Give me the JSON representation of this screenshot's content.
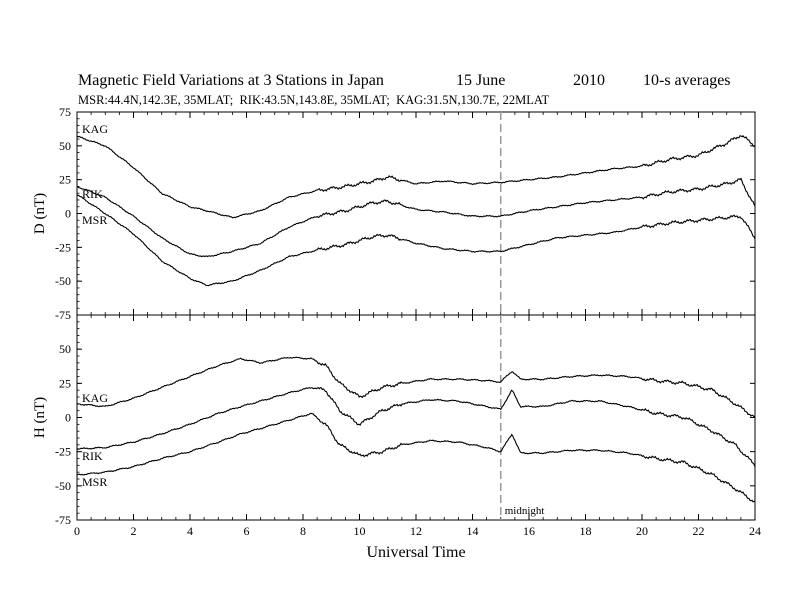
{
  "header": {
    "title": "Magnetic Field Variations at 3 Stations in Japan",
    "date": "15 June",
    "year": "2010",
    "averaging": "10-s averages",
    "stations": "MSR:44.4N,142.3E, 35MLAT;  RIK:43.5N,143.8E, 35MLAT;  KAG:31.5N,130.7E, 22MLAT"
  },
  "chart_data": [
    {
      "type": "line",
      "panel": "top",
      "ylabel": "D (nT)",
      "ylim": [
        -75,
        75
      ],
      "yticks": [
        75,
        50,
        25,
        0,
        -25,
        -50,
        -75
      ],
      "xlim": [
        0,
        24
      ],
      "xticks": [
        0,
        2,
        4,
        6,
        8,
        10,
        12,
        14,
        16,
        18,
        20,
        22,
        24
      ],
      "series": [
        {
          "name": "KAG",
          "x": [
            0,
            1,
            2,
            3,
            4,
            4.6,
            5.5,
            6.5,
            7.5,
            8.5,
            9.5,
            10.5,
            11,
            12,
            13,
            14,
            15,
            16,
            17,
            18,
            19,
            20,
            21,
            22,
            23,
            23.5,
            24
          ],
          "values": [
            57,
            50,
            34,
            15,
            5,
            2,
            -3,
            2,
            12,
            17,
            20,
            24,
            27,
            22,
            24,
            22,
            23,
            25,
            27,
            30,
            33,
            35,
            40,
            43,
            52,
            58,
            50
          ]
        },
        {
          "name": "RIK",
          "x": [
            0,
            1,
            2,
            3,
            4,
            4.6,
            5.5,
            6.5,
            7.5,
            8.5,
            9.5,
            10.5,
            11,
            12,
            13,
            14,
            15,
            16,
            17,
            18,
            19,
            20,
            21,
            22,
            23,
            23.5,
            24
          ],
          "values": [
            20,
            12,
            -2,
            -18,
            -30,
            -32,
            -28,
            -22,
            -10,
            -2,
            2,
            8,
            9,
            3,
            1,
            -2,
            -2,
            2,
            5,
            8,
            10,
            12,
            16,
            18,
            22,
            25,
            5
          ]
        },
        {
          "name": "MSR",
          "x": [
            0,
            1,
            2,
            3,
            4,
            4.6,
            5.5,
            6.5,
            7.5,
            8.5,
            9.5,
            10.5,
            11,
            12,
            13,
            14,
            15,
            16,
            17,
            18,
            19,
            20,
            21,
            22,
            23,
            23.5,
            24
          ],
          "values": [
            14,
            0,
            -15,
            -35,
            -48,
            -53,
            -50,
            -42,
            -32,
            -27,
            -23,
            -17,
            -16,
            -22,
            -26,
            -28,
            -28,
            -23,
            -18,
            -16,
            -14,
            -10,
            -7,
            -5,
            -3,
            -2,
            -18
          ]
        }
      ],
      "annotations": [
        {
          "text": "KAG"
        },
        {
          "text": "RIK"
        },
        {
          "text": "MSR"
        }
      ]
    },
    {
      "type": "line",
      "panel": "bottom",
      "ylabel": "H (nT)",
      "xlabel": "Universal Time",
      "ylim": [
        -75,
        75
      ],
      "yticks": [
        50,
        25,
        0,
        -25,
        -50,
        -75
      ],
      "xlim": [
        0,
        24
      ],
      "xticks": [
        0,
        2,
        4,
        6,
        8,
        10,
        12,
        14,
        16,
        18,
        20,
        22,
        24
      ],
      "series": [
        {
          "name": "KAG",
          "x": [
            0,
            1,
            2,
            3,
            4,
            5,
            5.8,
            6.5,
            7.5,
            8.3,
            8.8,
            9.3,
            10,
            10.8,
            11.5,
            12.5,
            13.5,
            14.5,
            15,
            15.4,
            15.7,
            16.5,
            17.5,
            18.5,
            19.5,
            20.5,
            21.5,
            22.5,
            23.3,
            24
          ],
          "values": [
            10,
            8,
            14,
            22,
            30,
            38,
            43,
            40,
            44,
            43,
            38,
            25,
            15,
            22,
            25,
            28,
            28,
            27,
            26,
            34,
            28,
            28,
            30,
            31,
            30,
            27,
            25,
            20,
            10,
            0
          ]
        },
        {
          "name": "RIK",
          "x": [
            0,
            1,
            2,
            3,
            4,
            5,
            5.8,
            6.5,
            7.5,
            8.3,
            8.8,
            9.3,
            10,
            10.8,
            11.5,
            12.5,
            13.5,
            14.5,
            15,
            15.4,
            15.7,
            16.5,
            17.5,
            18.5,
            19.5,
            20.5,
            21.5,
            22.5,
            23.3,
            24
          ],
          "values": [
            -23,
            -22,
            -18,
            -12,
            -5,
            3,
            8,
            12,
            18,
            22,
            20,
            5,
            -5,
            5,
            10,
            13,
            12,
            8,
            6,
            20,
            8,
            8,
            12,
            12,
            8,
            3,
            0,
            -10,
            -20,
            -35
          ]
        },
        {
          "name": "MSR",
          "x": [
            0,
            1,
            2,
            3,
            4,
            5,
            5.8,
            6.5,
            7.5,
            8.3,
            8.8,
            9.3,
            10,
            10.8,
            11.5,
            12.5,
            13.5,
            14.5,
            15,
            15.4,
            15.7,
            16.5,
            17.5,
            18.5,
            19.5,
            20.5,
            21.5,
            22.5,
            23.3,
            24
          ],
          "values": [
            -42,
            -40,
            -36,
            -30,
            -25,
            -18,
            -12,
            -8,
            -2,
            3,
            -5,
            -20,
            -28,
            -25,
            -20,
            -17,
            -18,
            -22,
            -25,
            -12,
            -26,
            -26,
            -24,
            -24,
            -26,
            -30,
            -33,
            -42,
            -52,
            -62
          ]
        }
      ],
      "annotations": [
        {
          "text": "KAG"
        },
        {
          "text": "RIK"
        },
        {
          "text": "MSR"
        },
        {
          "text": "midnight"
        }
      ]
    }
  ],
  "colors": {
    "line": "#000000",
    "axis": "#000000",
    "midnight_marker": "#999999"
  }
}
